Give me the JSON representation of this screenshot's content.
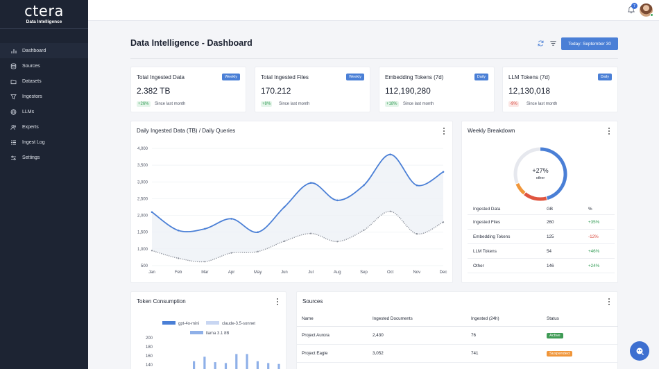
{
  "brand": {
    "word": "ctera",
    "subtitle": "Data Intelligence"
  },
  "sidebar": {
    "items": [
      {
        "label": "Dashboard",
        "icon": "bar-chart-icon",
        "active": true
      },
      {
        "label": "Sources",
        "icon": "database-icon"
      },
      {
        "label": "Datasets",
        "icon": "folder-icon"
      },
      {
        "label": "Ingestors",
        "icon": "funnel-icon"
      },
      {
        "label": "LLMs",
        "icon": "globe-icon"
      },
      {
        "label": "Experts",
        "icon": "users-icon"
      },
      {
        "label": "Ingest Log",
        "icon": "list-icon"
      },
      {
        "label": "Settings",
        "icon": "sliders-icon"
      }
    ]
  },
  "topbar": {
    "notification_count": "7"
  },
  "header": {
    "title": "Data Intelligence - Dashboard",
    "today_label": "Today: September 30"
  },
  "kpis": [
    {
      "title": "Total Ingested Data",
      "badge": "Weekly",
      "value": "2.382 TB",
      "delta": "+26%",
      "since": "Since last month"
    },
    {
      "title": "Total Ingested Files",
      "badge": "Weekly",
      "value": "170.212",
      "delta": "+8%",
      "since": "Since last month"
    },
    {
      "title": "Embedding Tokens (7d)",
      "badge": "Daily",
      "value": "112,190,280",
      "delta": "+18%",
      "since": "Since last month"
    },
    {
      "title": "LLM Tokens (7d)",
      "badge": "Daily",
      "value": "12,130,018",
      "delta": "-9%",
      "since": "Since last month"
    }
  ],
  "daily_panel": {
    "title": "Daily Ingested Data (TB) / Daily Queries"
  },
  "weekly_panel": {
    "title": "Weekly Breakdown",
    "donut_value": "+27%",
    "donut_sub": "other",
    "headers": [
      "Ingested Data",
      "GB",
      "%"
    ],
    "rows": [
      {
        "name": "Ingested Files",
        "gb": "260",
        "pct": "+35%"
      },
      {
        "name": "Embedding Tokens",
        "gb": "125",
        "pct": "-12%"
      },
      {
        "name": "LLM Tokens",
        "gb": "54",
        "pct": "+46%"
      },
      {
        "name": "Other",
        "gb": "146",
        "pct": "+24%"
      }
    ]
  },
  "token_panel": {
    "title": "Token Consumption"
  },
  "sources_panel": {
    "title": "Sources",
    "headers": [
      "Name",
      "Ingested Documents",
      "Ingested (24h)",
      "Status"
    ],
    "rows": [
      {
        "name": "Project Aurora",
        "docs": "2,430",
        "day": "76",
        "status": "Active"
      },
      {
        "name": "Project Eagle",
        "docs": "3,052",
        "day": "741",
        "status": "Suspended"
      }
    ]
  },
  "colors": {
    "accent": "#4a7fd6",
    "sidebar": "#1d2433",
    "donut_blue": "#4a7fd6",
    "donut_orange": "#f0963a",
    "donut_red": "#e0553f",
    "donut_grey": "#e6e8ee"
  },
  "chart_data": [
    {
      "type": "line",
      "x": [
        "Jan",
        "Feb",
        "Mar",
        "Apr",
        "May",
        "Jun",
        "Jul",
        "Aug",
        "Sep",
        "Oct",
        "Nov",
        "Dec"
      ],
      "ylim": [
        500,
        4000
      ],
      "yticks": [
        "500",
        "1,000",
        "1,500",
        "2,000",
        "2,500",
        "3,000",
        "3,500",
        "4,000"
      ],
      "series": [
        {
          "values": [
            2100,
            1550,
            1600,
            1900,
            1500,
            2250,
            2970,
            2450,
            2900,
            3820,
            2900,
            3300
          ],
          "color": "#4a7fd6"
        },
        {
          "values": [
            950,
            720,
            620,
            880,
            920,
            1230,
            1460,
            1220,
            1560,
            2120,
            1450,
            1800
          ],
          "color": "#8a8f99",
          "dotted": true
        }
      ],
      "grid": true
    },
    {
      "type": "pie",
      "slices": [
        {
          "value": 46,
          "color": "#4a7fd6"
        },
        {
          "value": 15,
          "color": "#e0553f"
        },
        {
          "value": 8,
          "color": "#f0963a"
        },
        {
          "value": 31,
          "color": "#e6e8ee"
        }
      ]
    },
    {
      "type": "bar",
      "legend": [
        "gpt-4o-mini",
        "claude-3.5-sonnet",
        "llama 3.1 8B"
      ],
      "legend_colors": [
        "#4a7fd6",
        "#c8d6f2",
        "#8fb0e8"
      ],
      "yticks": [
        "200",
        "180",
        "160",
        "140"
      ],
      "ylim": [
        130,
        200
      ],
      "values": [
        148,
        158,
        146,
        144,
        164,
        164,
        148,
        144,
        142
      ]
    }
  ]
}
